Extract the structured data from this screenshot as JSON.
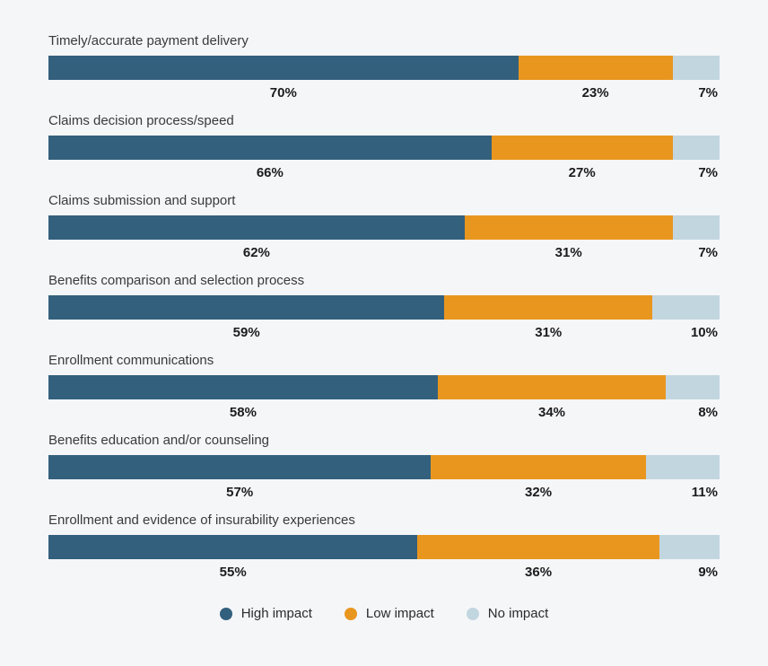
{
  "chart_data": {
    "type": "bar",
    "variant": "horizontal-stacked",
    "categories": [
      "Timely/accurate payment delivery",
      "Claims decision process/speed",
      "Claims submission and support",
      "Benefits comparison and selection process",
      "Enrollment communications",
      "Benefits education and/or counseling",
      "Enrollment and evidence of insurability experiences"
    ],
    "series": [
      {
        "name": "High impact",
        "color": "#33607D",
        "values": [
          70,
          66,
          62,
          59,
          58,
          57,
          55
        ]
      },
      {
        "name": "Low impact",
        "color": "#E9961F",
        "values": [
          23,
          27,
          31,
          31,
          34,
          32,
          36
        ]
      },
      {
        "name": "No impact",
        "color": "#C2D6E0",
        "values": [
          7,
          7,
          7,
          10,
          8,
          11,
          9
        ]
      }
    ],
    "value_suffix": "%",
    "xlim": [
      0,
      100
    ],
    "grid": false,
    "title": "",
    "xlabel": "",
    "ylabel": "",
    "legend_position": "bottom",
    "background_color": "#F5F6F8"
  },
  "legend": {
    "items": [
      {
        "label": "High impact",
        "color": "#33607D"
      },
      {
        "label": "Low impact",
        "color": "#E9961F"
      },
      {
        "label": "No impact",
        "color": "#C2D6E0"
      }
    ]
  }
}
